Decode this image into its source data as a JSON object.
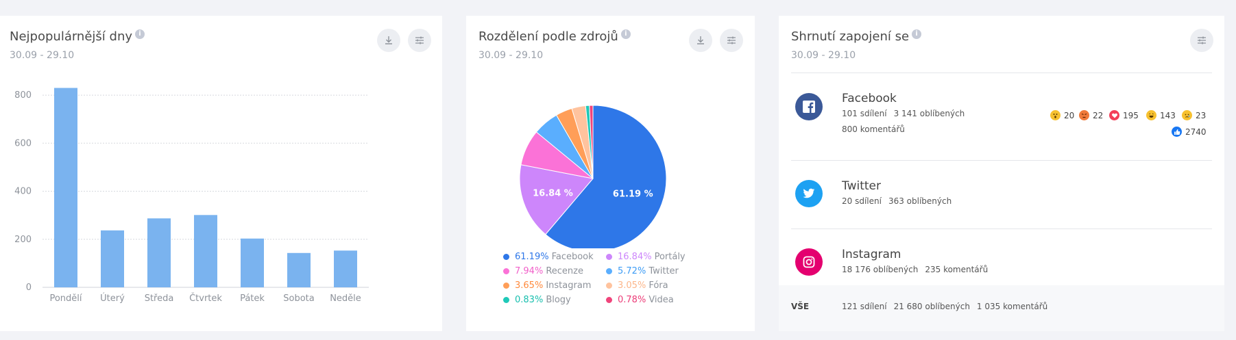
{
  "colors": {
    "bar": "#7ab3ef",
    "facebook": "#3b5998",
    "twitter": "#1da1f2",
    "instagram": "#e4006f"
  },
  "days_card": {
    "title": "Nejpopulárnější dny",
    "info": "i",
    "date_range": "30.09 - 29.10",
    "download_icon": "download-icon",
    "settings_icon": "sliders-icon"
  },
  "sources_card": {
    "title": "Rozdělení podle zdrojů",
    "info": "i",
    "date_range": "30.09 - 29.10",
    "download_icon": "download-icon",
    "settings_icon": "sliders-icon"
  },
  "engagement_card": {
    "title": "Shrnutí zapojení se",
    "info": "i",
    "date_range": "30.09 - 29.10",
    "settings_icon": "sliders-icon",
    "networks": [
      {
        "name": "Facebook",
        "icon": "facebook-icon",
        "shares": "101 sdílení",
        "likes": "3 141 oblíbených",
        "comments": "800 komentářů"
      },
      {
        "name": "Twitter",
        "icon": "twitter-icon",
        "shares": "20 sdílení",
        "likes": "363 oblíbených"
      },
      {
        "name": "Instagram",
        "icon": "instagram-icon",
        "likes": "18 176 oblíbených",
        "comments": "235 komentářů"
      }
    ],
    "reactions": {
      "wow": "20",
      "angry": "22",
      "love": "195",
      "haha": "143",
      "sad": "23",
      "like": "2740"
    },
    "total": {
      "label": "VŠE",
      "shares": "121 sdílení",
      "likes": "21 680 oblíbených",
      "comments": "1 035 komentářů"
    }
  },
  "chart_data": [
    {
      "type": "bar",
      "title": "Nejpopulárnější dny",
      "categories": [
        "Pondělí",
        "Úterý",
        "Středa",
        "Čtvrtek",
        "Pátek",
        "Sobota",
        "Neděle"
      ],
      "values": [
        830,
        237,
        287,
        301,
        203,
        143,
        153
      ],
      "yticks": [
        0,
        200,
        400,
        600,
        800
      ],
      "ylim": [
        0,
        860
      ],
      "grid": true
    },
    {
      "type": "pie",
      "title": "Rozdělení podle zdrojů",
      "slices": [
        {
          "label": "Facebook",
          "pct": "61.19%",
          "value": 61.19,
          "color": "#2e77e8",
          "pct_color": "#2e77e8",
          "label_on_slice": "61.19 %"
        },
        {
          "label": "Portály",
          "pct": "16.84%",
          "value": 16.84,
          "color": "#cd86fb",
          "pct_color": "#cd86fb",
          "label_on_slice": "16.84 %"
        },
        {
          "label": "Recenze",
          "pct": "7.94%",
          "value": 7.94,
          "color": "#fb72d7",
          "pct_color": "#f15fc9"
        },
        {
          "label": "Twitter",
          "pct": "5.72%",
          "value": 5.72,
          "color": "#5aaefe",
          "pct_color": "#3d9cf5"
        },
        {
          "label": "Instagram",
          "pct": "3.65%",
          "value": 3.65,
          "color": "#ff9e58",
          "pct_color": "#ff8a3d"
        },
        {
          "label": "Fóra",
          "pct": "3.05%",
          "value": 3.05,
          "color": "#ffc39e",
          "pct_color": "#fcb68a"
        },
        {
          "label": "Blogy",
          "pct": "0.83%",
          "value": 0.83,
          "color": "#1fc9b8",
          "pct_color": "#17bfae"
        },
        {
          "label": "Videa",
          "pct": "0.78%",
          "value": 0.78,
          "color": "#f0447b",
          "pct_color": "#ec3d78"
        }
      ]
    }
  ]
}
